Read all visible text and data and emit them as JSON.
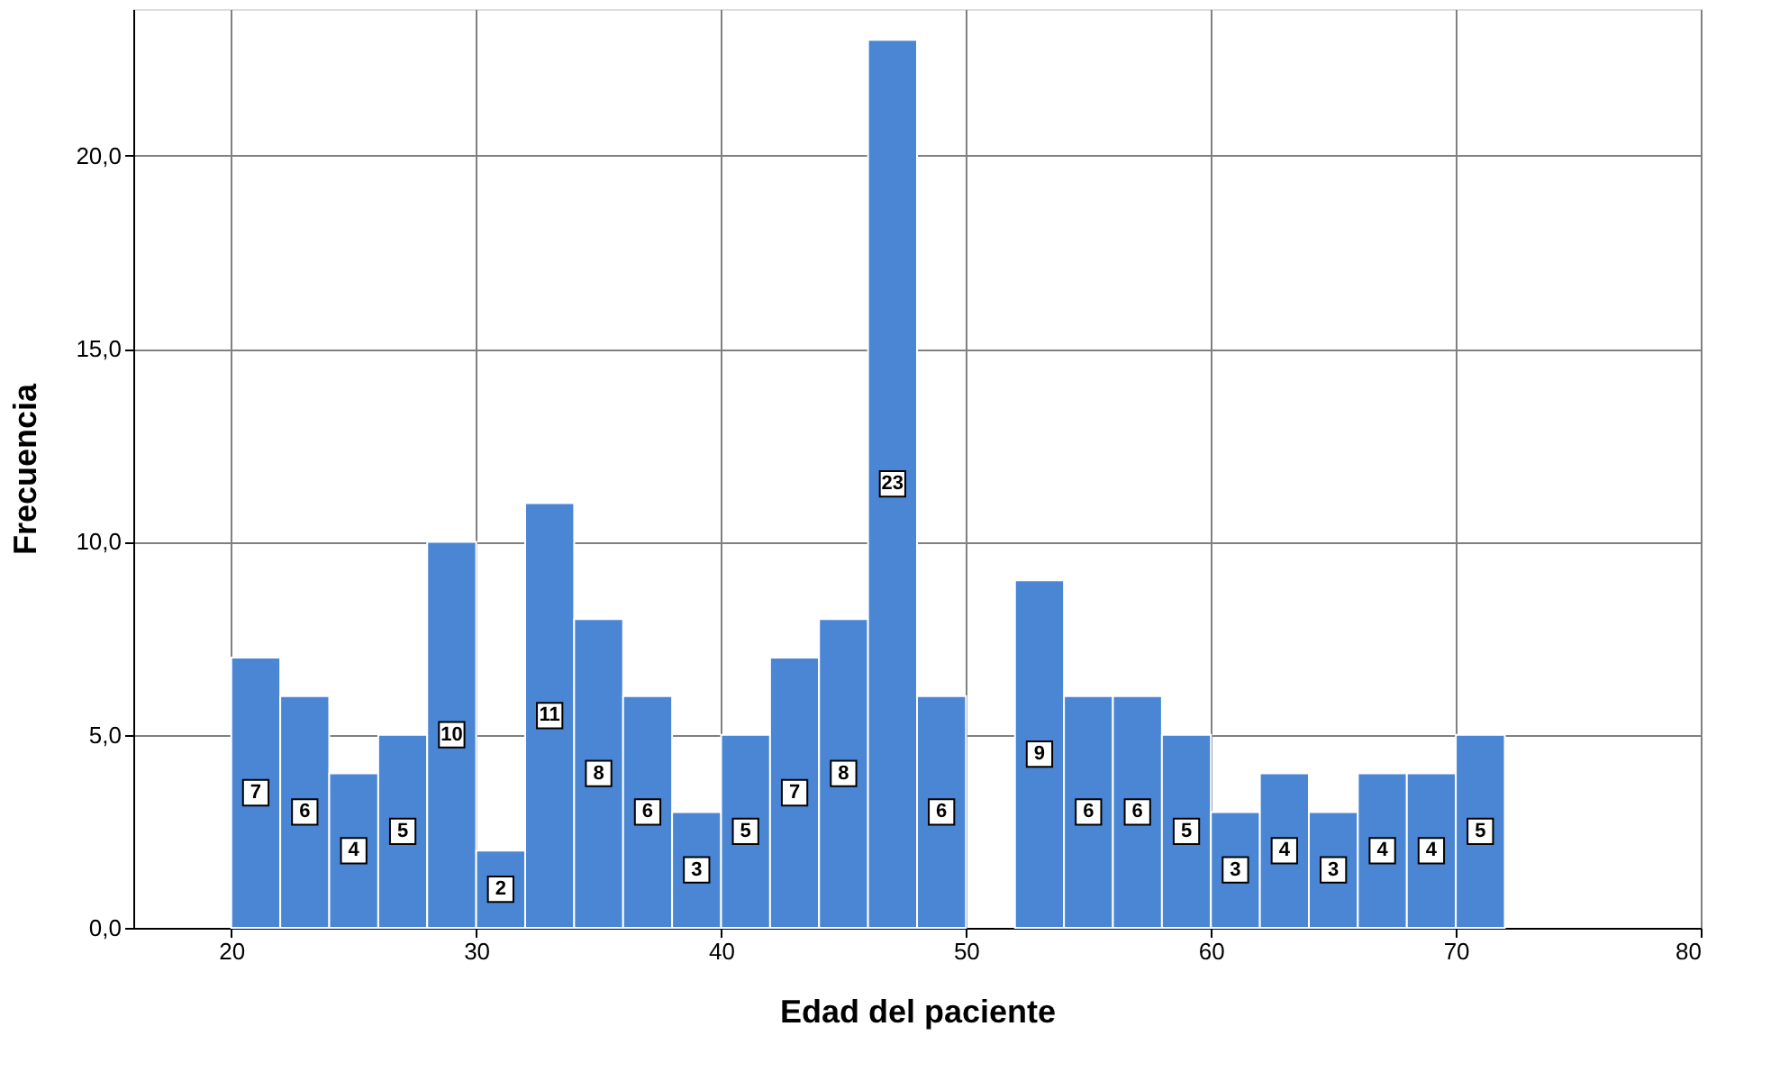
{
  "chart_data": {
    "type": "histogram",
    "xlabel": "Edad del paciente",
    "ylabel": "Frecuencia",
    "bins": [
      20,
      22,
      24,
      26,
      28,
      30,
      32,
      34,
      36,
      38,
      40,
      42,
      44,
      46,
      48,
      50,
      52,
      54,
      56,
      58,
      60,
      62,
      64,
      66,
      68,
      70,
      72
    ],
    "values": [
      7,
      6,
      4,
      5,
      10,
      2,
      11,
      8,
      6,
      3,
      5,
      7,
      8,
      23,
      6,
      0,
      9,
      6,
      6,
      5,
      3,
      4,
      3,
      4,
      4,
      5
    ],
    "value_labels": [
      "7",
      "6",
      "4",
      "5",
      "10",
      "2",
      "11",
      "8",
      "6",
      "3",
      "5",
      "7",
      "8",
      "23",
      "6",
      null,
      "9",
      "6",
      "6",
      "5",
      "3",
      "4",
      "3",
      "4",
      "4",
      "5"
    ],
    "color": "#4a86d4",
    "xlim": [
      16,
      80
    ],
    "xticks": [
      20,
      30,
      40,
      50,
      60,
      70,
      80
    ],
    "ylim": [
      0,
      23.8
    ],
    "yticks": [
      {
        "value": 0,
        "label": "0,0"
      },
      {
        "value": 5,
        "label": "5,0"
      },
      {
        "value": 10,
        "label": "10,0"
      },
      {
        "value": 15,
        "label": "15,0"
      },
      {
        "value": 20,
        "label": "20,0"
      }
    ],
    "grid": true
  }
}
